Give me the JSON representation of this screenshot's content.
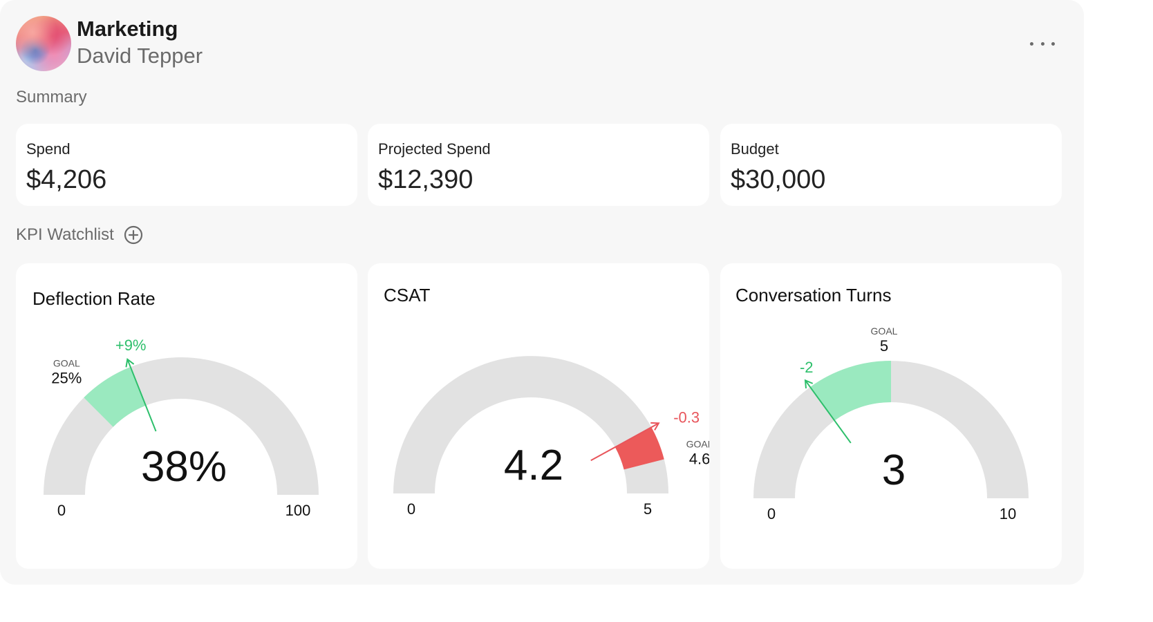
{
  "header": {
    "team": "Marketing",
    "user": "David Tepper",
    "more_icon": "more-horizontal-icon"
  },
  "summary": {
    "label": "Summary",
    "cards": [
      {
        "label": "Spend",
        "value": "$4,206"
      },
      {
        "label": "Projected Spend",
        "value": "$12,390"
      },
      {
        "label": "Budget",
        "value": "$30,000"
      }
    ]
  },
  "kpi": {
    "label": "KPI Watchlist",
    "add_icon": "plus-circle-icon",
    "gauges": [
      {
        "title": "Deflection Rate",
        "value": 38,
        "value_text": "38%",
        "min": 0,
        "max": 100,
        "min_text": "0",
        "max_text": "100",
        "goal": 25,
        "goal_label": "GOAL",
        "goal_text": "25%",
        "delta_text": "+9%",
        "delta_color": "#2dbf6b",
        "band_color": "#9ae9bf"
      },
      {
        "title": "CSAT",
        "value": 4.2,
        "value_text": "4.2",
        "min": 0,
        "max": 5,
        "min_text": "0",
        "max_text": "5",
        "goal": 4.6,
        "goal_label": "GOAL",
        "goal_text": "4.6",
        "delta_text": "-0.3",
        "delta_color": "#e8555b",
        "band_color": "#ec5a5a"
      },
      {
        "title": "Conversation Turns",
        "value": 3,
        "value_text": "3",
        "min": 0,
        "max": 10,
        "min_text": "0",
        "max_text": "10",
        "goal": 5,
        "goal_label": "GOAL",
        "goal_text": "5",
        "delta_text": "-2",
        "delta_color": "#2dbf6b",
        "band_color": "#9ae9bf"
      }
    ]
  }
}
